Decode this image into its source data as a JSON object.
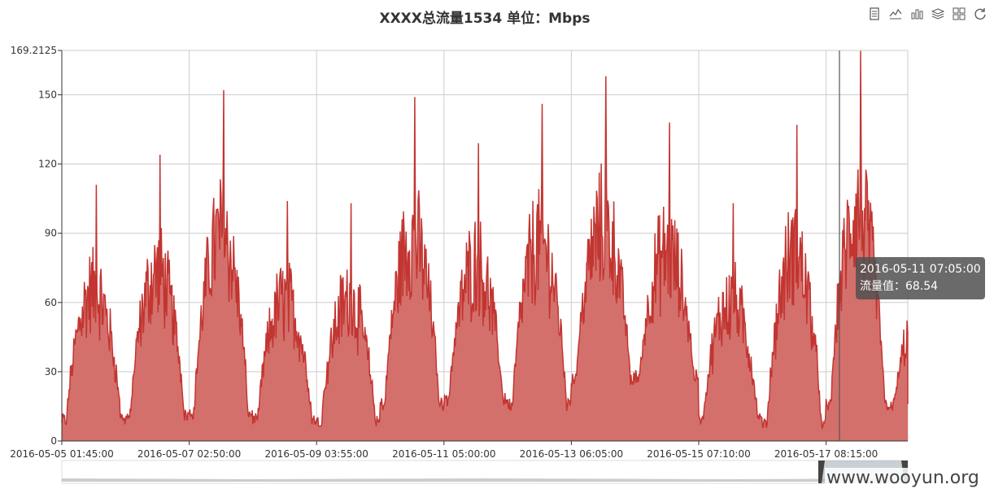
{
  "title": "XXXX总流量1534 单位：Mbps",
  "toolbox": {
    "icons": [
      "data-view-icon",
      "line-chart-icon",
      "bar-chart-icon",
      "stack-icon",
      "tiled-icon",
      "restore-icon"
    ]
  },
  "colors": {
    "series_line": "#c23531",
    "series_fill": "#d4706c",
    "grid": "#cccccc",
    "axis": "#333333"
  },
  "chart_data": {
    "type": "area",
    "title": "XXXX总流量1534 单位：Mbps",
    "xlabel": "",
    "ylabel": "",
    "ylim": [
      0,
      169.2125
    ],
    "y_ticks": [
      "0",
      "30",
      "60",
      "90",
      "120",
      "150",
      "169.2125"
    ],
    "x_ticks": [
      "2016-05-05 01:45:00",
      "2016-05-07 02:50:00",
      "2016-05-09 03:55:00",
      "2016-05-11 05:00:00",
      "2016-05-13 06:05:00",
      "2016-05-15 07:10:00",
      "2016-05-17 08:15:00"
    ],
    "x_range": [
      "2016-05-05 01:45:00",
      "2016-05-18 09:00:00"
    ],
    "grid": true,
    "daily_peaks": [
      {
        "date": "2016-05-05",
        "min": 9,
        "max": 111
      },
      {
        "date": "2016-05-06",
        "min": 11,
        "max": 124
      },
      {
        "date": "2016-05-07",
        "min": 12,
        "max": 152
      },
      {
        "date": "2016-05-08",
        "min": 9,
        "max": 104
      },
      {
        "date": "2016-05-09",
        "min": 8,
        "max": 103
      },
      {
        "date": "2016-05-10",
        "min": 16,
        "max": 149
      },
      {
        "date": "2016-05-11",
        "min": 18,
        "max": 129
      },
      {
        "date": "2016-05-12",
        "min": 16,
        "max": 146
      },
      {
        "date": "2016-05-13",
        "min": 27,
        "max": 158
      },
      {
        "date": "2016-05-14",
        "min": 28,
        "max": 138
      },
      {
        "date": "2016-05-15",
        "min": 9,
        "max": 103
      },
      {
        "date": "2016-05-16",
        "min": 7,
        "max": 137
      },
      {
        "date": "2016-05-17",
        "min": 16,
        "max": 169
      },
      {
        "date": "2016-05-18",
        "min": 16,
        "max": 94
      }
    ],
    "series": [
      {
        "name": "流量值",
        "values": "daily_peaks"
      }
    ]
  },
  "tooltip": {
    "time": "2016-05-11 07:05:00",
    "label": "流量值：68.54"
  },
  "watermark": "www.wooyun.org"
}
